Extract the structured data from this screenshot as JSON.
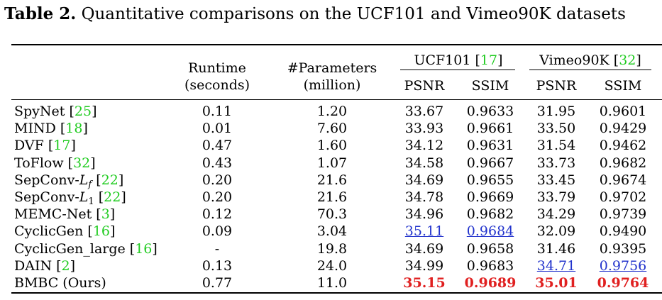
{
  "caption": {
    "label": "Table 2.",
    "text": "Quantitative comparisons on the UCF101 and Vimeo90K datasets"
  },
  "header": {
    "runtime": [
      "Runtime",
      "(seconds)"
    ],
    "params": [
      "#Parameters",
      "(million)"
    ],
    "ucf": {
      "name": "UCF101",
      "ref": "17"
    },
    "vimeo": {
      "name": "Vimeo90K",
      "ref": "32"
    },
    "psnr": "PSNR",
    "ssim": "SSIM"
  },
  "rows": [
    {
      "method": "SpyNet",
      "ref": "25",
      "runtime": "0.11",
      "params": "1.20",
      "ucf_psnr": "33.67",
      "ucf_ssim": "0.9633",
      "vim_psnr": "31.95",
      "vim_ssim": "0.9601"
    },
    {
      "method": "MIND",
      "ref": "18",
      "runtime": "0.01",
      "params": "7.60",
      "ucf_psnr": "33.93",
      "ucf_ssim": "0.9661",
      "vim_psnr": "33.50",
      "vim_ssim": "0.9429"
    },
    {
      "method": "DVF",
      "ref": "17",
      "runtime": "0.47",
      "params": "1.60",
      "ucf_psnr": "34.12",
      "ucf_ssim": "0.9631",
      "vim_psnr": "31.54",
      "vim_ssim": "0.9462"
    },
    {
      "method": "ToFlow",
      "ref": "32",
      "runtime": "0.43",
      "params": "1.07",
      "ucf_psnr": "34.58",
      "ucf_ssim": "0.9667",
      "vim_psnr": "33.73",
      "vim_ssim": "0.9682"
    },
    {
      "method": "SepConv-L",
      "sub": "f",
      "ref": "22",
      "runtime": "0.20",
      "params": "21.6",
      "ucf_psnr": "34.69",
      "ucf_ssim": "0.9655",
      "vim_psnr": "33.45",
      "vim_ssim": "0.9674"
    },
    {
      "method": "SepConv-L",
      "sub": "1",
      "ref": "22",
      "runtime": "0.20",
      "params": "21.6",
      "ucf_psnr": "34.78",
      "ucf_ssim": "0.9669",
      "vim_psnr": "33.79",
      "vim_ssim": "0.9702"
    },
    {
      "method": "MEMC-Net",
      "ref": "3",
      "runtime": "0.12",
      "params": "70.3",
      "ucf_psnr": "34.96",
      "ucf_ssim": "0.9682",
      "vim_psnr": "34.29",
      "vim_ssim": "0.9739"
    },
    {
      "method": "CyclicGen",
      "ref": "16",
      "runtime": "0.09",
      "params": "3.04",
      "ucf_psnr": "35.11",
      "ucf_ssim": "0.9684",
      "vim_psnr": "32.09",
      "vim_ssim": "0.9490",
      "ucf_psnr_style": "second",
      "ucf_ssim_style": "second"
    },
    {
      "method": "CyclicGen_large",
      "ref": "16",
      "runtime": "-",
      "params": "19.8",
      "ucf_psnr": "34.69",
      "ucf_ssim": "0.9658",
      "vim_psnr": "31.46",
      "vim_ssim": "0.9395"
    },
    {
      "method": "DAIN",
      "ref": "2",
      "runtime": "0.13",
      "params": "24.0",
      "ucf_psnr": "34.99",
      "ucf_ssim": "0.9683",
      "vim_psnr": "34.71",
      "vim_ssim": "0.9756",
      "vim_psnr_style": "second",
      "vim_ssim_style": "second"
    },
    {
      "method": "BMBC (Ours)",
      "runtime": "0.77",
      "params": "11.0",
      "ucf_psnr": "35.15",
      "ucf_ssim": "0.9689",
      "vim_psnr": "35.01",
      "vim_ssim": "0.9764",
      "ucf_psnr_style": "best",
      "ucf_ssim_style": "best",
      "vim_psnr_style": "best",
      "vim_ssim_style": "best"
    }
  ]
}
